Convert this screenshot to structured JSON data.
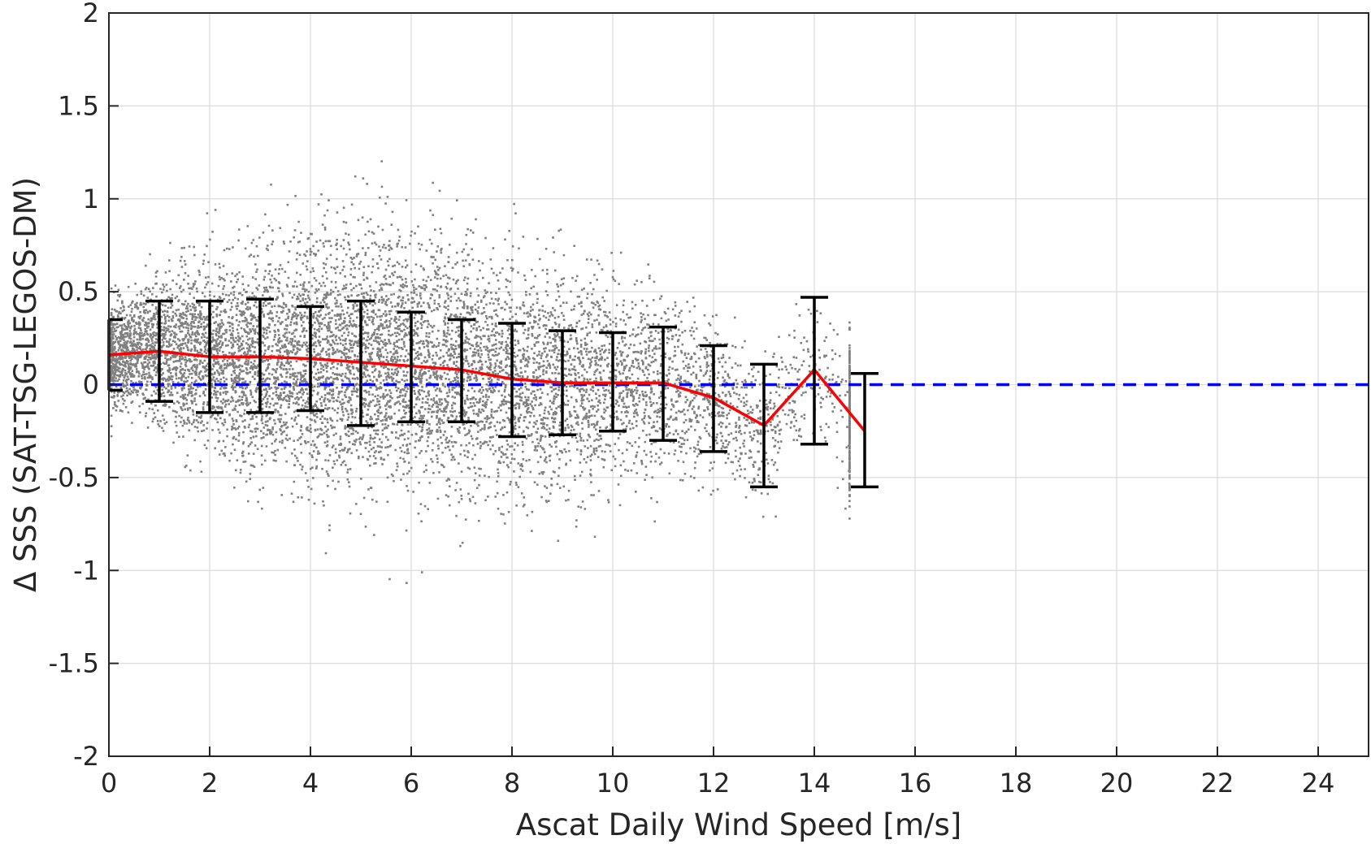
{
  "chart_data": {
    "type": "scatter",
    "title": "",
    "xlabel": "Ascat Daily Wind Speed [m/s]",
    "ylabel": "Δ SSS (SAT-TSG-LEGOS-DM)",
    "xlim": [
      0,
      25
    ],
    "ylim": [
      -2,
      2
    ],
    "xticks": [
      0,
      2,
      4,
      6,
      8,
      10,
      12,
      14,
      16,
      18,
      20,
      22,
      24
    ],
    "yticks": [
      -2,
      -1.5,
      -1,
      -0.5,
      0,
      0.5,
      1,
      1.5,
      2
    ],
    "xtick_labels": [
      "0",
      "2",
      "4",
      "6",
      "8",
      "10",
      "12",
      "14",
      "16",
      "18",
      "20",
      "22",
      "24"
    ],
    "ytick_labels": [
      "-2",
      "-1.5",
      "-1",
      "-0.5",
      "0",
      "0.5",
      "1",
      "1.5",
      "2"
    ],
    "grid": true,
    "scatter_cloud": {
      "color": "#808080",
      "x_range": [
        0,
        14.7
      ],
      "density_note_y_core": [
        -0.5,
        0.8
      ],
      "envelope": [
        {
          "x": 0.5,
          "lo": -0.4,
          "hi": 0.6
        },
        {
          "x": 1,
          "lo": -0.6,
          "hi": 0.9
        },
        {
          "x": 2,
          "lo": -0.8,
          "hi": 1.0
        },
        {
          "x": 3,
          "lo": -0.8,
          "hi": 1.2
        },
        {
          "x": 4,
          "lo": -1.0,
          "hi": 1.4
        },
        {
          "x": 5,
          "lo": -1.1,
          "hi": 1.4
        },
        {
          "x": 6,
          "lo": -1.1,
          "hi": 1.3
        },
        {
          "x": 7,
          "lo": -1.2,
          "hi": 1.2
        },
        {
          "x": 8,
          "lo": -1.2,
          "hi": 1.1
        },
        {
          "x": 9,
          "lo": -1.2,
          "hi": 1.0
        },
        {
          "x": 10,
          "lo": -1.1,
          "hi": 0.9
        },
        {
          "x": 11,
          "lo": -1.0,
          "hi": 0.8
        },
        {
          "x": 12,
          "lo": -0.8,
          "hi": 0.6
        },
        {
          "x": 13,
          "lo": -0.9,
          "hi": 0.5
        },
        {
          "x": 14,
          "lo": -1.0,
          "hi": 0.4
        },
        {
          "x": 14.6,
          "lo": -1.1,
          "hi": 0.4
        }
      ]
    },
    "series": [
      {
        "kind": "line",
        "color": "#ff0000",
        "x": [
          0,
          1,
          2,
          3,
          4,
          5,
          6,
          7,
          8,
          9,
          10,
          11,
          12,
          13,
          14,
          15
        ],
        "y": [
          0.16,
          0.18,
          0.15,
          0.15,
          0.14,
          0.12,
          0.1,
          0.08,
          0.03,
          0.01,
          0.01,
          0.01,
          -0.07,
          -0.22,
          0.08,
          -0.25
        ]
      },
      {
        "kind": "errorbar",
        "color": "#000000",
        "x": [
          0,
          1,
          2,
          3,
          4,
          5,
          6,
          7,
          8,
          9,
          10,
          11,
          12,
          13,
          14,
          15
        ],
        "low": [
          -0.03,
          -0.09,
          -0.15,
          -0.15,
          -0.14,
          -0.22,
          -0.2,
          -0.2,
          -0.28,
          -0.27,
          -0.25,
          -0.3,
          -0.36,
          -0.55,
          -0.32,
          -0.55
        ],
        "high": [
          0.35,
          0.45,
          0.45,
          0.46,
          0.42,
          0.45,
          0.39,
          0.35,
          0.33,
          0.29,
          0.28,
          0.31,
          0.21,
          0.11,
          0.47,
          0.06
        ]
      },
      {
        "kind": "reference_line",
        "color": "#0000ff",
        "style": "dashed",
        "y": 0
      }
    ]
  }
}
